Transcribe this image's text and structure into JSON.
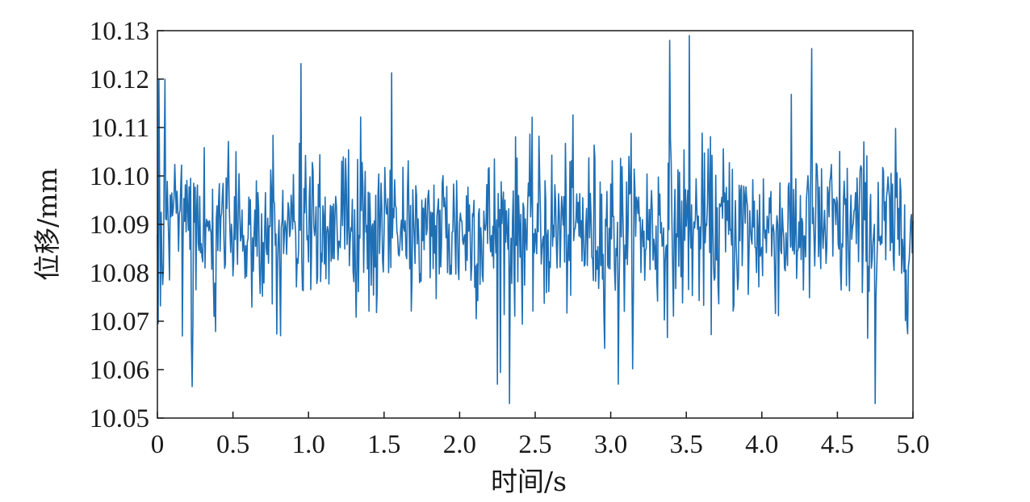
{
  "chart_data": {
    "type": "line",
    "xlabel": "时间/s",
    "ylabel": "位移/mm",
    "xlim": [
      0,
      5.0
    ],
    "ylim": [
      10.05,
      10.13
    ],
    "x_ticks": [
      0,
      0.5,
      1.0,
      1.5,
      2.0,
      2.5,
      3.0,
      3.5,
      4.0,
      4.5,
      5.0
    ],
    "x_tick_labels": [
      "0",
      "0.5",
      "1.0",
      "1.5",
      "2.0",
      "2.5",
      "3.0",
      "3.5",
      "4.0",
      "4.5",
      "5.0"
    ],
    "y_ticks": [
      10.05,
      10.06,
      10.07,
      10.08,
      10.09,
      10.1,
      10.11,
      10.12,
      10.13
    ],
    "y_tick_labels": [
      "10.05",
      "10.06",
      "10.07",
      "10.08",
      "10.09",
      "10.10",
      "10.11",
      "10.12",
      "10.13"
    ],
    "grid": false,
    "legend": "none",
    "line_color": "#1f6fb5",
    "series": [
      {
        "sample_interval": 0.005,
        "mean": 10.089,
        "noise_std": 0.0085,
        "notable_points": [
          {
            "x": 0.01,
            "y": 10.12
          },
          {
            "x": 0.05,
            "y": 10.12
          },
          {
            "x": 0.23,
            "y": 10.0565
          },
          {
            "x": 0.95,
            "y": 10.1232
          },
          {
            "x": 1.55,
            "y": 10.1213
          },
          {
            "x": 2.25,
            "y": 10.057
          },
          {
            "x": 2.33,
            "y": 10.053
          },
          {
            "x": 3.05,
            "y": 10.057
          },
          {
            "x": 3.39,
            "y": 10.128
          },
          {
            "x": 3.52,
            "y": 10.129
          },
          {
            "x": 4.33,
            "y": 10.1263
          },
          {
            "x": 4.75,
            "y": 10.053
          }
        ]
      }
    ]
  }
}
